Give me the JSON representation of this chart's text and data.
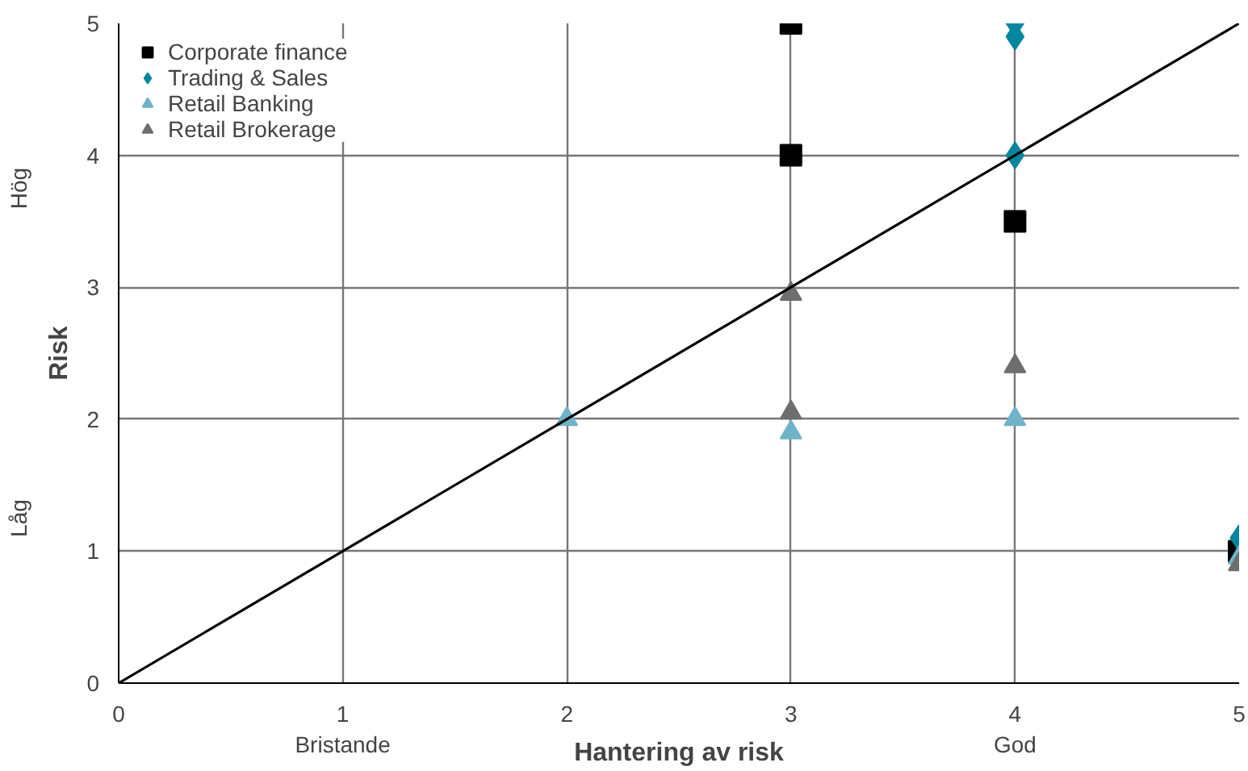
{
  "chart_data": {
    "type": "scatter",
    "xlabel": "Hantering av risk",
    "ylabel": "Risk",
    "xlim": [
      0,
      5
    ],
    "ylim": [
      0,
      5
    ],
    "xticks": [
      0,
      {
        "value": 1,
        "label": "1\nBristande"
      },
      2,
      3,
      {
        "value": 4,
        "label": "4\nGod"
      },
      5
    ],
    "yticks": [
      0,
      1,
      2,
      3,
      4,
      5
    ],
    "annotations": [
      "Låg",
      "Hög"
    ],
    "grid": true,
    "legend": "top left",
    "series": [
      {
        "name": "Corporate finance",
        "color": "#000000",
        "marker": "square",
        "x": [
          3,
          3,
          4,
          5
        ],
        "values": [
          5,
          4,
          3.5,
          1
        ]
      },
      {
        "name": "Trading & Sales",
        "color": "#00869e",
        "marker": "diamond",
        "x": [
          4,
          4,
          4,
          5
        ],
        "values": [
          5,
          4.9,
          4,
          1.1
        ]
      },
      {
        "name": "Retail Banking",
        "color": "#6fb3c8",
        "marker": "triangle",
        "x": [
          2,
          3,
          4,
          5
        ],
        "values": [
          2,
          1.9,
          2,
          0.95
        ]
      },
      {
        "name": "Retail Brokerage",
        "color": "#6e6e6e",
        "marker": "triangle",
        "x": [
          3,
          3,
          4,
          5
        ],
        "values": [
          2.95,
          2.05,
          2.4,
          0.9
        ]
      },
      {
        "type": "line",
        "color": "#000000",
        "marker": "none",
        "x": [
          0,
          5
        ],
        "values": [
          0,
          5
        ]
      }
    ]
  }
}
